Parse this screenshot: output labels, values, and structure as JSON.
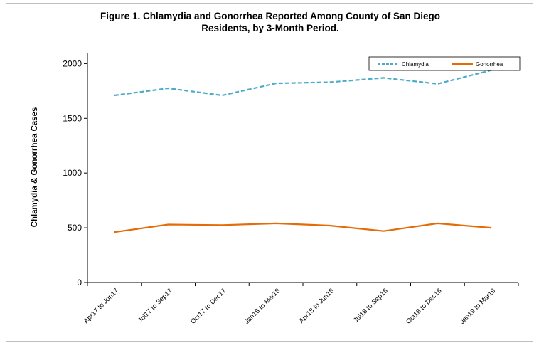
{
  "chart_data": {
    "type": "line",
    "title_line1": "Figure 1. Chlamydia and Gonorrhea Reported Among County of San Diego",
    "title_line2": "Residents, by 3-Month Period.",
    "xlabel": "",
    "ylabel": "Chlamydia  & Gonorrhea Cases",
    "ylim": [
      0,
      2100
    ],
    "yticks": [
      0,
      500,
      1000,
      1500,
      2000
    ],
    "grid": false,
    "legend_position": "top-right",
    "categories": [
      "Apr17 to Jun17",
      "Jul17 to Sep17",
      "Oct17 to Dec17",
      "Jan18 to Mar18",
      "Apr18 to Jun18",
      "Jul18 to Sep18",
      "Oct18 to Dec18",
      "Jan19 to Mar19"
    ],
    "series": [
      {
        "name": "Chlamydia",
        "color": "#4bacc6",
        "dash": "dashed",
        "values": [
          1710,
          1775,
          1710,
          1820,
          1830,
          1870,
          1815,
          1940
        ]
      },
      {
        "name": "Gonorrhea",
        "color": "#e36c09",
        "dash": "solid",
        "values": [
          460,
          530,
          525,
          540,
          520,
          470,
          540,
          500
        ]
      }
    ]
  }
}
